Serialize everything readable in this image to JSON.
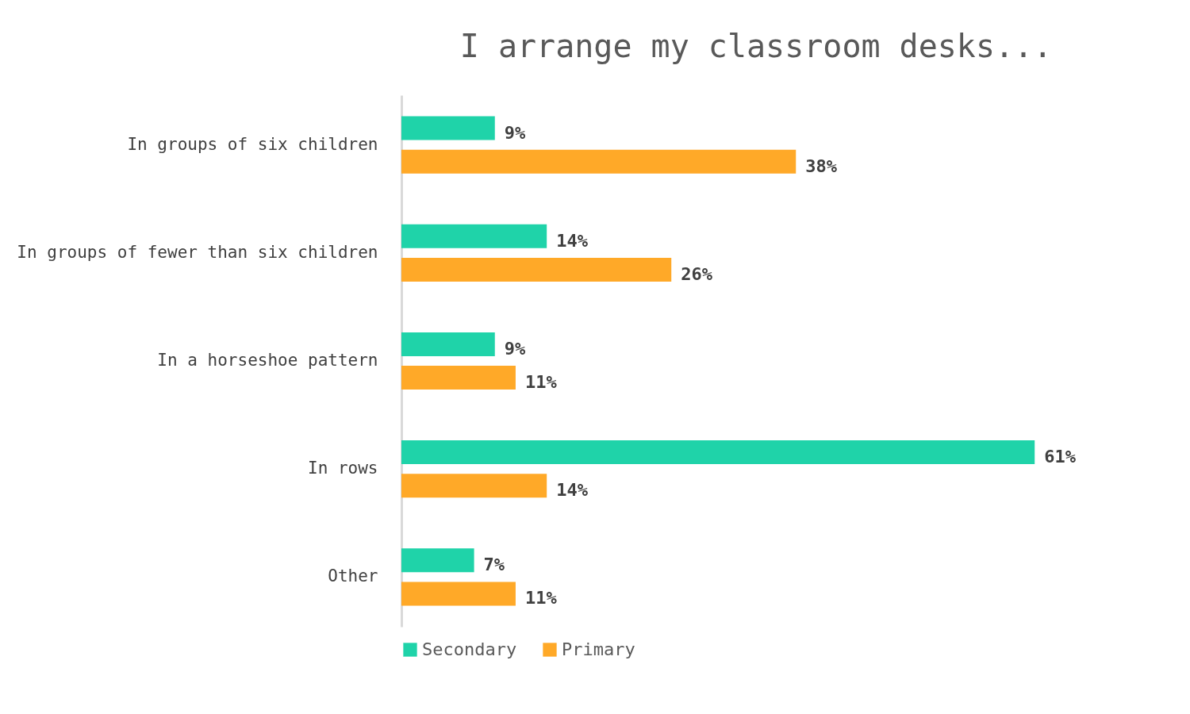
{
  "chart_data": {
    "type": "bar",
    "orientation": "horizontal",
    "title": "I arrange my classroom desks...",
    "categories": [
      "In groups of six children",
      "In groups of fewer than six children",
      "In a horseshoe pattern",
      "In rows",
      "Other"
    ],
    "series": [
      {
        "name": "Secondary",
        "color": "#1fd3a9",
        "values": [
          9,
          14,
          9,
          61,
          7
        ],
        "value_labels": [
          "9%",
          "14%",
          "9%",
          "61%",
          "7%"
        ]
      },
      {
        "name": "Primary",
        "color": "#ffa928",
        "values": [
          38,
          26,
          11,
          14,
          11
        ],
        "value_labels": [
          "38%",
          "26%",
          "11%",
          "14%",
          "11%"
        ]
      }
    ],
    "legend": "bottom",
    "grid": false
  }
}
